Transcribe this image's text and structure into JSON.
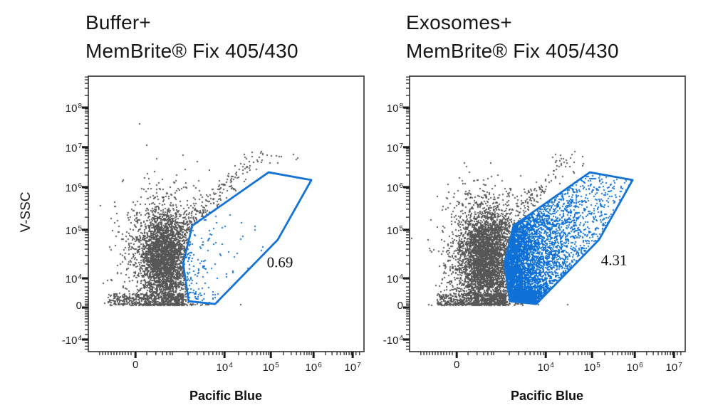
{
  "chart_data": {
    "type": "scatter",
    "description": "Two flow cytometry dot plots comparing buffer vs exosomes stained with MemBrite Fix 405/430; gated population percentage shown in each plot",
    "x_axis": {
      "title": "Pacific Blue",
      "scale": "biexponential",
      "ticks": [
        {
          "f": 0.171,
          "t": "0"
        },
        {
          "f": 0.494,
          "t": "10",
          "e": "4"
        },
        {
          "f": 0.662,
          "t": "10",
          "e": "5"
        },
        {
          "f": 0.817,
          "t": "10",
          "e": "6"
        },
        {
          "f": 0.959,
          "t": "10",
          "e": "7"
        }
      ],
      "minor": [
        0.041,
        0.052,
        0.062,
        0.072,
        0.083,
        0.093,
        0.103,
        0.114,
        0.124,
        0.134,
        0.145,
        0.155,
        0.212,
        0.245,
        0.269,
        0.284,
        0.297,
        0.305,
        0.362,
        0.395,
        0.419,
        0.437,
        0.452,
        0.465,
        0.475,
        0.486,
        0.545,
        0.574,
        0.594,
        0.612,
        0.625,
        0.636,
        0.646,
        0.654,
        0.708,
        0.736,
        0.755,
        0.77,
        0.783,
        0.793,
        0.801,
        0.809,
        0.86,
        0.884,
        0.902,
        0.915,
        0.928,
        0.936,
        0.946,
        0.954,
        0.971,
        0.984
      ]
    },
    "y_axis": {
      "title": "V-SSC",
      "scale": "biexponential",
      "ticks": [
        {
          "f": 0.114,
          "t": "10",
          "e": "8"
        },
        {
          "f": 0.258,
          "t": "10",
          "e": "7"
        },
        {
          "f": 0.403,
          "t": "10",
          "e": "6"
        },
        {
          "f": 0.558,
          "t": "10",
          "e": "5"
        },
        {
          "f": 0.734,
          "t": "10",
          "e": "4"
        },
        {
          "f": 0.84,
          "t": "0"
        },
        {
          "f": 0.956,
          "t": "-10",
          "e": "4"
        }
      ],
      "minor": [
        0.003,
        0.013,
        0.026,
        0.044,
        0.07,
        0.119,
        0.127,
        0.134,
        0.145,
        0.158,
        0.171,
        0.189,
        0.215,
        0.264,
        0.271,
        0.279,
        0.289,
        0.302,
        0.315,
        0.333,
        0.359,
        0.408,
        0.419,
        0.426,
        0.437,
        0.45,
        0.465,
        0.483,
        0.512,
        0.566,
        0.576,
        0.586,
        0.597,
        0.612,
        0.628,
        0.651,
        0.682,
        0.749,
        0.765,
        0.778,
        0.788,
        0.801,
        0.811,
        0.819,
        0.827,
        0.832,
        0.848,
        0.855,
        0.863,
        0.871,
        0.881,
        0.892,
        0.904,
        0.92,
        0.938,
        0.968,
        0.98,
        0.991
      ]
    },
    "gate_polygon": [
      [
        0.377,
        0.543
      ],
      [
        0.654,
        0.349
      ],
      [
        0.809,
        0.377
      ],
      [
        0.687,
        0.594
      ],
      [
        0.46,
        0.827
      ],
      [
        0.364,
        0.817
      ],
      [
        0.344,
        0.68
      ]
    ],
    "panels": [
      {
        "title_lines": [
          "Buffer+",
          "MemBrite® Fix 405/430"
        ],
        "gate": {
          "label": "0.69",
          "label_x": 0.695,
          "label_y": 0.677
        },
        "populations": [
          {
            "type": "gauss",
            "color": "gray",
            "n": 2600,
            "cx": 0.275,
            "cy": 0.66,
            "sx": 0.042,
            "sy": 0.085,
            "ymax": 0.832,
            "avoid_gate": true
          },
          {
            "type": "gauss",
            "color": "gray",
            "n": 900,
            "cx": 0.27,
            "cy": 0.665,
            "sx": 0.082,
            "sy": 0.125,
            "ymax": 0.832,
            "avoid_gate": true
          },
          {
            "type": "band",
            "color": "gray",
            "n": 520,
            "x0": 0.07,
            "x1": 0.345,
            "y0": 0.79,
            "y1": 0.833
          },
          {
            "type": "trail",
            "color": "gray",
            "n": 210,
            "x0": 0.335,
            "y0": 0.56,
            "x1": 0.625,
            "y1": 0.285,
            "spread": 0.016,
            "avoid_gate": true
          },
          {
            "type": "spray",
            "color": "gray",
            "n": 14,
            "x0": 0.55,
            "x1": 0.77,
            "y0": 0.28,
            "y1": 0.32
          },
          {
            "type": "gate_exp",
            "color": "blue",
            "n": 150,
            "x0": 0.34,
            "mean": 0.05,
            "mix1": 0.8,
            "mean2": 0.18,
            "mix2": 1.0,
            "bottom_frac": 0.1,
            "y0": 0.5,
            "y1": 0.834,
            "ypow": 0.9
          }
        ]
      },
      {
        "title_lines": [
          "Exosomes+",
          "MemBrite® Fix 405/430"
        ],
        "gate": {
          "label": "4.31",
          "label_x": 0.742,
          "label_y": 0.67
        },
        "populations": [
          {
            "type": "gauss",
            "color": "gray",
            "n": 3000,
            "cx": 0.275,
            "cy": 0.66,
            "sx": 0.046,
            "sy": 0.09,
            "ymax": 0.832,
            "avoid_gate": true
          },
          {
            "type": "gauss",
            "color": "gray",
            "n": 900,
            "cx": 0.27,
            "cy": 0.665,
            "sx": 0.082,
            "sy": 0.125,
            "ymax": 0.832,
            "avoid_gate": true
          },
          {
            "type": "band",
            "color": "gray",
            "n": 600,
            "x0": 0.1,
            "x1": 0.35,
            "y0": 0.79,
            "y1": 0.833
          },
          {
            "type": "trail",
            "color": "gray",
            "n": 170,
            "x0": 0.335,
            "y0": 0.55,
            "x1": 0.58,
            "y1": 0.31,
            "spread": 0.016,
            "avoid_gate": true
          },
          {
            "type": "spray",
            "color": "gray",
            "n": 12,
            "x0": 0.5,
            "x1": 0.66,
            "y0": 0.28,
            "y1": 0.34
          },
          {
            "type": "gate_exp",
            "color": "blue",
            "n": 5600,
            "x0": 0.335,
            "mean": 0.065,
            "mix1": 0.62,
            "mean2": 0.17,
            "mix2": 0.88,
            "bottom_frac": 0.2,
            "y0": 0.355,
            "y1": 0.834,
            "ypow": 0.8
          }
        ]
      }
    ],
    "colors": {
      "dot_gray": "#575757",
      "dot_blue": "#0f70d7",
      "gate_blue": "#1573d4",
      "axis": "#1c1c1c",
      "border": "#3d3d3d"
    }
  }
}
